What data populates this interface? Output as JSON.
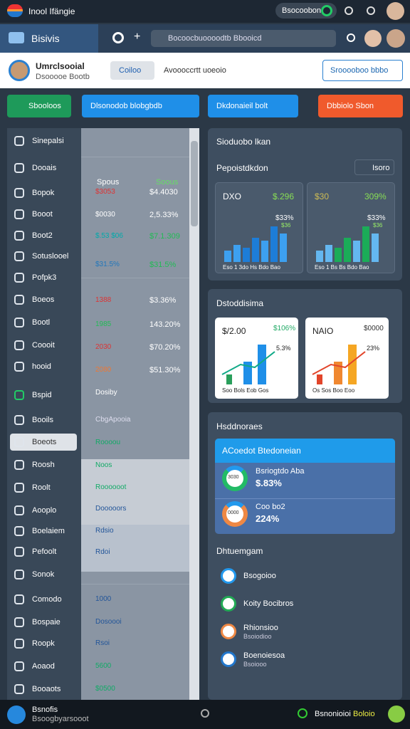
{
  "status_bar": {
    "title": "Inool Ifängie",
    "toggle_label": "Bsocoobon"
  },
  "app_bar": {
    "title": "Bisivis",
    "search": "Bocoocbuoooodtb Bbooicd"
  },
  "profile": {
    "name": "Umrclsooial",
    "subtitle": "Dsooooe Bootb",
    "tab_active": "Coiloo",
    "tab": "Avoooccrtt uoeoio",
    "select": "Srooooboo bbbo"
  },
  "toolbar": [
    "Sbooloos",
    "Dlsonodob blobgbdb",
    "Dkdonaieil bolt",
    "Dbbiolo Sbon"
  ],
  "sidebar": [
    "Sinepalsi",
    "Dooais",
    "Bopok",
    "Booot",
    "Boot2",
    "Sotuslooel",
    "Pofpk3",
    "Boeos",
    "Bootl",
    "Coooit",
    "hooid",
    "Bspid",
    "Booils",
    "Boeots",
    "Roosh",
    "Roolt",
    "Aooplo",
    "Boelaiem",
    "Pefoolt",
    "Sonok",
    "Comodo",
    "Bospaie",
    "Roopk",
    "Aoaod",
    "Booaots"
  ],
  "table": {
    "header": [
      "Spous",
      "Soous"
    ],
    "rows": [
      [
        "$3053",
        "$4.4030"
      ],
      [
        "$0030",
        "2,5.33%"
      ],
      [
        "$.53 $06",
        "$7.1.309"
      ],
      [
        "$31.5%",
        "$31.5%"
      ],
      [
        "1388",
        "$3.36%"
      ],
      [
        "1985",
        "143.20%"
      ],
      [
        "2030",
        "$70.20%"
      ],
      [
        "2080",
        "$51.30%"
      ],
      [
        "Dosiby"
      ],
      [
        "CbgApooia"
      ],
      [
        "Roooou"
      ],
      [
        "Noos"
      ],
      [
        "Roooooot"
      ],
      [
        "Dooooors"
      ],
      [
        "Rdsio"
      ],
      [
        "Rdoi"
      ],
      [
        "1000"
      ],
      [
        "Dosoooi"
      ],
      [
        "Rsoi"
      ],
      [
        "5600"
      ],
      [
        "$0500"
      ]
    ]
  },
  "panel1": {
    "title": "Sioduobo lkan",
    "subtitle": "Pepoistdkdon",
    "search": "Isoro",
    "cards": [
      {
        "label": "DXO",
        "value": "$.296",
        "change": "$33%",
        "sub": "$36",
        "axis": "Eso 1 3do Hs Bdo Bao"
      },
      {
        "label": "$30",
        "value": "309%",
        "change": "$33%",
        "sub": "$36",
        "axis": "Eso 1 Bs Bs Bdo Bao"
      }
    ]
  },
  "panel2": {
    "title": "Dstoddisima",
    "cards": [
      {
        "label": "$/2.00",
        "value": "$106%",
        "change": "5.3%",
        "axis": "Soo Bols Eob Gos"
      },
      {
        "label": "NAIO",
        "value": "$0000",
        "change": "23%",
        "axis": "Os Sos Boo Eoo"
      }
    ]
  },
  "panel3": {
    "title": "Hsddnoraes",
    "banner": "ACoedot Btedoneian",
    "stats": [
      {
        "label": "Bsriogtdo Aba",
        "value": "$.83%",
        "ring": "3030"
      },
      {
        "label": "Coo bo2",
        "value": "224%",
        "ring": "0000"
      }
    ],
    "section": "Dhtuemgam",
    "items": [
      {
        "title": "Bsogoioo"
      },
      {
        "title": "Koity Bocibros"
      },
      {
        "title": "Rhionsioo",
        "sub": "Bsoiodioo"
      },
      {
        "title": "Boenoiesoa",
        "sub": "Bsoiooo"
      }
    ]
  },
  "bottom_bar": {
    "title": "Bsnofis",
    "subtitle": "Bsoogbyarsooot",
    "status": "Bsnonioioi",
    "status_value": "Boloio"
  }
}
